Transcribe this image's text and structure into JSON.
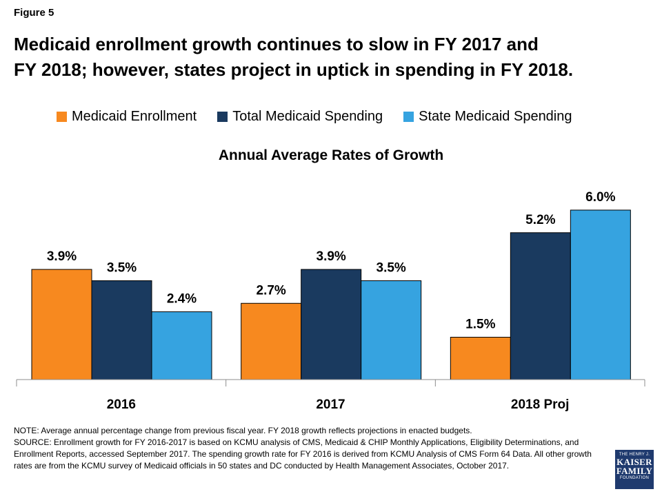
{
  "figure_label": "Figure 5",
  "headline": {
    "line1": "Medicaid enrollment growth continues to slow in FY 2017 and",
    "line2": "FY 2018; however, states project in uptick in spending in FY 2018."
  },
  "notes": {
    "note": "NOTE: Average annual percentage change from previous fiscal year. FY 2018  growth reflects projections in enacted budgets.",
    "source": "SOURCE: Enrollment growth for FY 2016-2017  is based on KCMU analysis of CMS, Medicaid & CHIP Monthly Applications, Eligibility Determinations, and Enrollment Reports, accessed September 2017.  The spending growth rate for FY 2016  is derived from KCMU Analysis of CMS Form 64 Data.  All other growth rates are from the KCMU survey of Medicaid officials in 50 states and DC conducted by Health Management Associates, October 2017."
  },
  "logo": {
    "line1": "THE HENRY J.",
    "line2": "KAISER",
    "line3": "FAMILY",
    "line4": "FOUNDATION"
  },
  "chart_data": {
    "type": "bar",
    "title": "Annual Average Rates of Growth",
    "categories": [
      "2016",
      "2017",
      "2018 Proj"
    ],
    "series": [
      {
        "name": "Medicaid Enrollment",
        "color": "#f7891f",
        "values": [
          3.9,
          2.7,
          1.5
        ],
        "labels": [
          "3.9%",
          "2.7%",
          "1.5%"
        ]
      },
      {
        "name": "Total Medicaid Spending",
        "color": "#1a3a5f",
        "values": [
          3.5,
          3.9,
          5.2
        ],
        "labels": [
          "3.5%",
          "3.9%",
          "5.2%"
        ]
      },
      {
        "name": "State Medicaid Spending",
        "color": "#36a3e0",
        "values": [
          2.4,
          3.5,
          6.0
        ],
        "labels": [
          "2.4%",
          "3.5%",
          "6.0%"
        ]
      }
    ],
    "ylim": [
      0,
      6.95
    ],
    "legend_position": "top",
    "grid": false
  }
}
